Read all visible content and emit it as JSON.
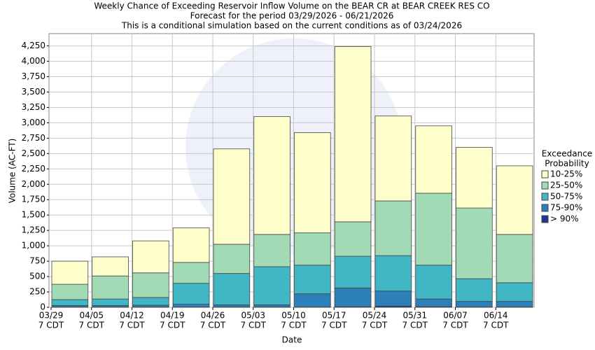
{
  "chart_data": {
    "type": "stacked_bar",
    "title": [
      "Weekly Chance of Exceeding Reservoir Inflow Volume on the BEAR CR at BEAR CREEK RES CO",
      "Forecast for the period 03/29/2026 - 06/21/2026",
      "This is a conditional simulation based on the current conditions as of 03/24/2026"
    ],
    "xlabel": "Date",
    "ylabel": "Volume (AC-FT)",
    "legend_title": [
      "Exceedance",
      "Probability"
    ],
    "categories": [
      [
        "03/29",
        "7 CDT"
      ],
      [
        "04/05",
        "7 CDT"
      ],
      [
        "04/12",
        "7 CDT"
      ],
      [
        "04/19",
        "7 CDT"
      ],
      [
        "04/26",
        "7 CDT"
      ],
      [
        "05/03",
        "7 CDT"
      ],
      [
        "05/10",
        "7 CDT"
      ],
      [
        "05/17",
        "7 CDT"
      ],
      [
        "05/24",
        "7 CDT"
      ],
      [
        "05/31",
        "7 CDT"
      ],
      [
        "06/07",
        "7 CDT"
      ],
      [
        "06/14",
        "7 CDT"
      ]
    ],
    "series": [
      {
        "name": "> 90%",
        "color": "#253494",
        "values": [
          5,
          5,
          5,
          5,
          5,
          5,
          5,
          10,
          20,
          10,
          5,
          5
        ]
      },
      {
        "name": "75-90%",
        "color": "#2c7fb8",
        "values": [
          25,
          25,
          30,
          45,
          35,
          35,
          215,
          305,
          245,
          125,
          90,
          90
        ]
      },
      {
        "name": "50-75%",
        "color": "#41b6c4",
        "values": [
          95,
          105,
          125,
          340,
          510,
          620,
          465,
          515,
          575,
          550,
          370,
          305
        ]
      },
      {
        "name": "25-50%",
        "color": "#a1dab4",
        "values": [
          250,
          375,
          400,
          340,
          475,
          525,
          525,
          560,
          890,
          1170,
          1150,
          785
        ]
      },
      {
        "name": "10-25%",
        "color": "#ffffcc",
        "values": [
          375,
          310,
          520,
          560,
          1550,
          1915,
          1630,
          2850,
          1380,
          1095,
          985,
          1115
        ]
      }
    ],
    "ylim": [
      0,
      4450
    ],
    "yticks": [
      0,
      250,
      500,
      750,
      {
        "value": 1000,
        "label": "1,000"
      },
      {
        "value": 1250,
        "label": "1,250"
      },
      {
        "value": 1500,
        "label": "1,500"
      },
      {
        "value": 1750,
        "label": "1,750"
      },
      {
        "value": 2000,
        "label": "2,000"
      },
      {
        "value": 2250,
        "label": "2,250"
      },
      {
        "value": 2500,
        "label": "2,500"
      },
      {
        "value": 2750,
        "label": "2,750"
      },
      {
        "value": 3000,
        "label": "3,000"
      },
      {
        "value": 3250,
        "label": "3,250"
      },
      {
        "value": 3500,
        "label": "3,500"
      },
      {
        "value": 3750,
        "label": "3,750"
      },
      {
        "value": 4000,
        "label": "4,000"
      },
      {
        "value": 4250,
        "label": "4,250"
      }
    ],
    "grid": true,
    "legend": "right"
  }
}
